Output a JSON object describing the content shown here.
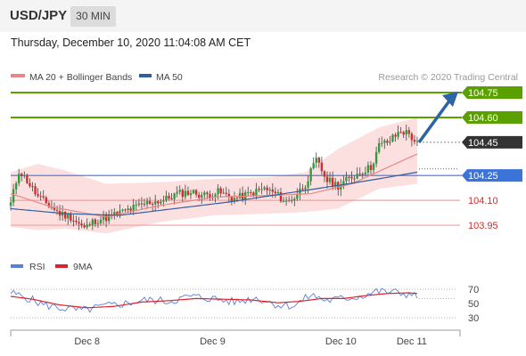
{
  "header": {
    "pair": "USD/JPY",
    "timeframe": "30 MIN"
  },
  "timestamp": "Thursday, December 10, 2020 11:04:08 AM CET",
  "colors": {
    "bull": "#2f9e3a",
    "bear": "#d62b2b",
    "ma20": "#e78787",
    "ma50": "#315f9e",
    "bollinger_fill": "#fbdada",
    "resistance": "#5aa000",
    "support_ref": "#f0a0a0",
    "pivot": "#3b73d9",
    "last": "#333333",
    "rsi": "#5b7fd6",
    "rsi_ma": "#d9232d",
    "arrow": "#2d64a8"
  },
  "chart_data": [
    {
      "type": "candlestick",
      "legend": [
        "MA 20 + Bollinger Bands",
        "MA 50"
      ],
      "credit": "Research © 2020 Trading Central",
      "ylim": [
        103.8,
        104.82
      ],
      "x_ticks": [
        "Dec 8",
        "Dec 9",
        "Dec 10",
        "Dec 11"
      ],
      "levels": [
        {
          "label": "104.75",
          "value": 104.75,
          "kind": "resistance"
        },
        {
          "label": "104.60",
          "value": 104.6,
          "kind": "resistance"
        },
        {
          "label": "104.45",
          "value": 104.45,
          "kind": "last"
        },
        {
          "label": "104.25",
          "value": 104.25,
          "kind": "pivot"
        },
        {
          "label": "104.10",
          "value": 104.1,
          "kind": "support"
        },
        {
          "label": "103.95",
          "value": 103.95,
          "kind": "support"
        }
      ],
      "close_anchors": [
        [
          0,
          104.08
        ],
        [
          3,
          104.28
        ],
        [
          6,
          104.22
        ],
        [
          10,
          104.12
        ],
        [
          14,
          104.07
        ],
        [
          18,
          104.02
        ],
        [
          22,
          104.0
        ],
        [
          27,
          103.93
        ],
        [
          31,
          103.98
        ],
        [
          36,
          104.0
        ],
        [
          41,
          104.03
        ],
        [
          46,
          104.06
        ],
        [
          51,
          104.09
        ],
        [
          56,
          104.1
        ],
        [
          61,
          104.14
        ],
        [
          66,
          104.15
        ],
        [
          71,
          104.13
        ],
        [
          76,
          104.15
        ],
        [
          82,
          104.11
        ],
        [
          88,
          104.14
        ],
        [
          93,
          104.17
        ],
        [
          97,
          104.14
        ],
        [
          101,
          104.09
        ],
        [
          104,
          104.12
        ],
        [
          108,
          104.2
        ],
        [
          112,
          104.34
        ],
        [
          116,
          104.22
        ],
        [
          120,
          104.19
        ],
        [
          124,
          104.23
        ],
        [
          128,
          104.27
        ],
        [
          132,
          104.3
        ],
        [
          135,
          104.43
        ],
        [
          139,
          104.46
        ],
        [
          143,
          104.52
        ],
        [
          146,
          104.5
        ],
        [
          149,
          104.44
        ]
      ],
      "ma20": [
        [
          0,
          104.14
        ],
        [
          15,
          104.06
        ],
        [
          35,
          104.0
        ],
        [
          55,
          104.07
        ],
        [
          75,
          104.12
        ],
        [
          95,
          104.13
        ],
        [
          110,
          104.14
        ],
        [
          125,
          104.2
        ],
        [
          149,
          104.38
        ]
      ],
      "ma50": [
        [
          0,
          104.05
        ],
        [
          20,
          104.02
        ],
        [
          40,
          104.01
        ],
        [
          60,
          104.05
        ],
        [
          80,
          104.09
        ],
        [
          100,
          104.14
        ],
        [
          120,
          104.19
        ],
        [
          135,
          104.23
        ],
        [
          149,
          104.27
        ]
      ],
      "bollinger": {
        "upper": [
          [
            0,
            104.27
          ],
          [
            10,
            104.32
          ],
          [
            20,
            104.28
          ],
          [
            35,
            104.2
          ],
          [
            55,
            104.21
          ],
          [
            75,
            104.23
          ],
          [
            95,
            104.24
          ],
          [
            108,
            104.27
          ],
          [
            120,
            104.41
          ],
          [
            135,
            104.54
          ],
          [
            149,
            104.6
          ]
        ],
        "lower": [
          [
            0,
            103.94
          ],
          [
            10,
            103.92
          ],
          [
            20,
            103.93
          ],
          [
            35,
            103.9
          ],
          [
            55,
            103.97
          ],
          [
            75,
            104.01
          ],
          [
            95,
            104.02
          ],
          [
            108,
            104.03
          ],
          [
            120,
            104.05
          ],
          [
            135,
            104.17
          ],
          [
            149,
            104.2
          ]
        ]
      },
      "forecast_arrow": {
        "from": 104.45,
        "to": 104.75
      }
    },
    {
      "type": "line",
      "legend": [
        "RSI",
        "9MA"
      ],
      "y_ticks": [
        "70",
        "50",
        "30"
      ],
      "ylim": [
        20,
        85
      ],
      "levels": [
        70,
        30
      ],
      "rsi": [
        [
          0,
          65
        ],
        [
          6,
          58
        ],
        [
          12,
          48
        ],
        [
          18,
          44
        ],
        [
          26,
          40
        ],
        [
          34,
          46
        ],
        [
          42,
          50
        ],
        [
          50,
          55
        ],
        [
          58,
          53
        ],
        [
          66,
          60
        ],
        [
          74,
          57
        ],
        [
          82,
          52
        ],
        [
          90,
          58
        ],
        [
          98,
          48
        ],
        [
          104,
          47
        ],
        [
          110,
          62
        ],
        [
          116,
          54
        ],
        [
          122,
          57
        ],
        [
          128,
          60
        ],
        [
          134,
          67
        ],
        [
          140,
          66
        ],
        [
          146,
          63
        ],
        [
          149,
          59
        ]
      ],
      "rsi_ma": [
        [
          0,
          60
        ],
        [
          8,
          56
        ],
        [
          18,
          48
        ],
        [
          28,
          44
        ],
        [
          38,
          46
        ],
        [
          48,
          52
        ],
        [
          58,
          54
        ],
        [
          68,
          57
        ],
        [
          78,
          56
        ],
        [
          88,
          55
        ],
        [
          98,
          51
        ],
        [
          106,
          53
        ],
        [
          114,
          57
        ],
        [
          122,
          57
        ],
        [
          130,
          61
        ],
        [
          138,
          64
        ],
        [
          146,
          65
        ],
        [
          149,
          64
        ]
      ]
    }
  ]
}
